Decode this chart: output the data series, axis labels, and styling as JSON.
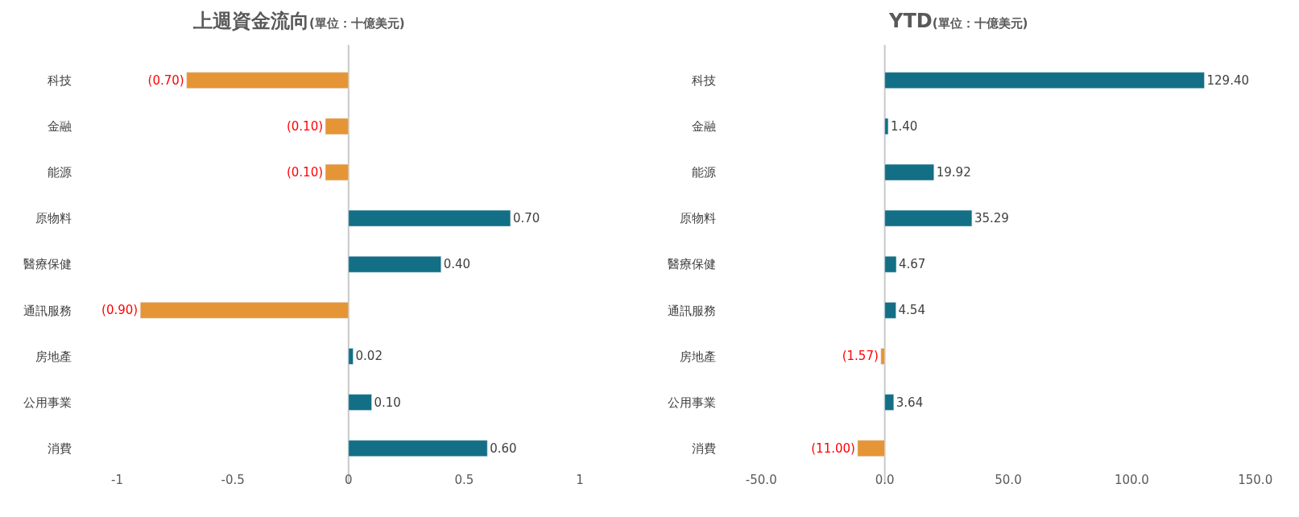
{
  "chart_data": [
    {
      "type": "bar",
      "orientation": "horizontal",
      "title": "上週資金流向",
      "subtitle": "(單位：十億美元)",
      "categories": [
        "科技",
        "金融",
        "能源",
        "原物料",
        "醫療保健",
        "通訊服務",
        "房地產",
        "公用事業",
        "消費"
      ],
      "values": [
        -0.7,
        -0.1,
        -0.1,
        0.7,
        0.4,
        -0.9,
        0.02,
        0.1,
        0.6
      ],
      "value_labels": [
        "(0.70)",
        "(0.10)",
        "(0.10)",
        "0.70",
        "0.40",
        "(0.90)",
        "0.02",
        "0.10",
        "0.60"
      ],
      "colors": [
        "#e69536",
        "#e69536",
        "#e69536",
        "#136f85",
        "#136f85",
        "#e69536",
        "#136f85",
        "#136f85",
        "#136f85"
      ],
      "xlim": [
        -1,
        1
      ],
      "xticks": [
        -1,
        -0.5,
        0,
        0.5,
        1
      ],
      "grid": false,
      "ref_lines": [
        {
          "axis": "x",
          "value": 0,
          "color": "#c8c8c8"
        }
      ]
    },
    {
      "type": "bar",
      "orientation": "horizontal",
      "title": "YTD",
      "subtitle": "(單位：十億美元)",
      "categories": [
        "科技",
        "金融",
        "能源",
        "原物料",
        "醫療保健",
        "通訊服務",
        "房地產",
        "公用事業",
        "消費"
      ],
      "values": [
        129.4,
        1.4,
        19.92,
        35.29,
        4.67,
        4.54,
        -1.57,
        3.64,
        -11.0
      ],
      "value_labels": [
        "129.40",
        "1.40",
        "19.92",
        "35.29",
        "4.67",
        "4.54",
        "(1.57)",
        "3.64",
        "(11.00)"
      ],
      "colors": [
        "#136f85",
        "#136f85",
        "#136f85",
        "#136f85",
        "#136f85",
        "#136f85",
        "#e69536",
        "#136f85",
        "#e69536"
      ],
      "xlim": [
        -50,
        150
      ],
      "xticks": [
        {
          "value": -50,
          "label": "-50.0"
        },
        {
          "value": 0,
          "label": "0.0"
        },
        {
          "value": 50,
          "label": "50.0"
        },
        {
          "value": 100,
          "label": "100.0"
        },
        {
          "value": 150,
          "label": "150.0"
        }
      ],
      "grid": false,
      "ref_lines": [
        {
          "axis": "x",
          "value": 0,
          "color": "#c8c8c8"
        }
      ]
    }
  ]
}
